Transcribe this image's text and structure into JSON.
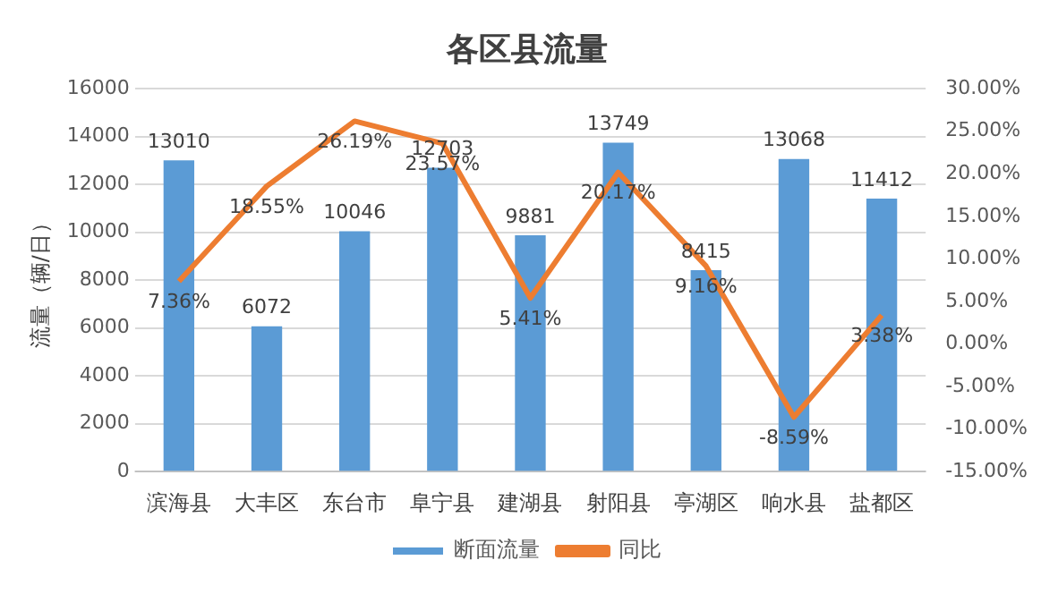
{
  "chart_data": {
    "type": "bar",
    "title": "各区县流量",
    "ylabel": "流量（辆/日）",
    "categories": [
      "滨海县",
      "大丰区",
      "东台市",
      "阜宁县",
      "建湖县",
      "射阳县",
      "亭湖区",
      "响水县",
      "盐都区"
    ],
    "series": [
      {
        "name": "断面流量",
        "color": "#5b9bd5",
        "values": [
          13010,
          6072,
          10046,
          12703,
          9881,
          13749,
          8415,
          13068,
          11412
        ],
        "value_labels": [
          "13010",
          "6072",
          "10046",
          "12703",
          "9881",
          "13749",
          "8415",
          "13068",
          "11412"
        ]
      },
      {
        "name": "同比",
        "type": "line",
        "axis": "y2",
        "color": "#ed7d31",
        "values": [
          7.36,
          18.55,
          26.19,
          23.57,
          5.41,
          20.17,
          9.16,
          -8.59,
          3.38
        ],
        "value_labels": [
          "7.36%",
          "18.55%",
          "26.19%",
          "23.57%",
          "5.41%",
          "20.17%",
          "9.16%",
          "-8.59%",
          "3.38%"
        ]
      }
    ],
    "ylim": [
      0,
      16000
    ],
    "yticks": [
      0,
      2000,
      4000,
      6000,
      8000,
      10000,
      12000,
      14000,
      16000
    ],
    "y2lim": [
      -15,
      30
    ],
    "y2ticks": [
      {
        "value": -15,
        "label": "-15.00%"
      },
      {
        "value": -10,
        "label": "-10.00%"
      },
      {
        "value": -5,
        "label": "-5.00%"
      },
      {
        "value": 0,
        "label": "0.00%"
      },
      {
        "value": 5,
        "label": "5.00%"
      },
      {
        "value": 10,
        "label": "10.00%"
      },
      {
        "value": 15,
        "label": "15.00%"
      },
      {
        "value": 20,
        "label": "20.00%"
      },
      {
        "value": 25,
        "label": "25.00%"
      },
      {
        "value": 30,
        "label": "30.00%"
      }
    ],
    "grid": "y",
    "legend": "bottom",
    "marker": "none",
    "line_style": "solid"
  }
}
